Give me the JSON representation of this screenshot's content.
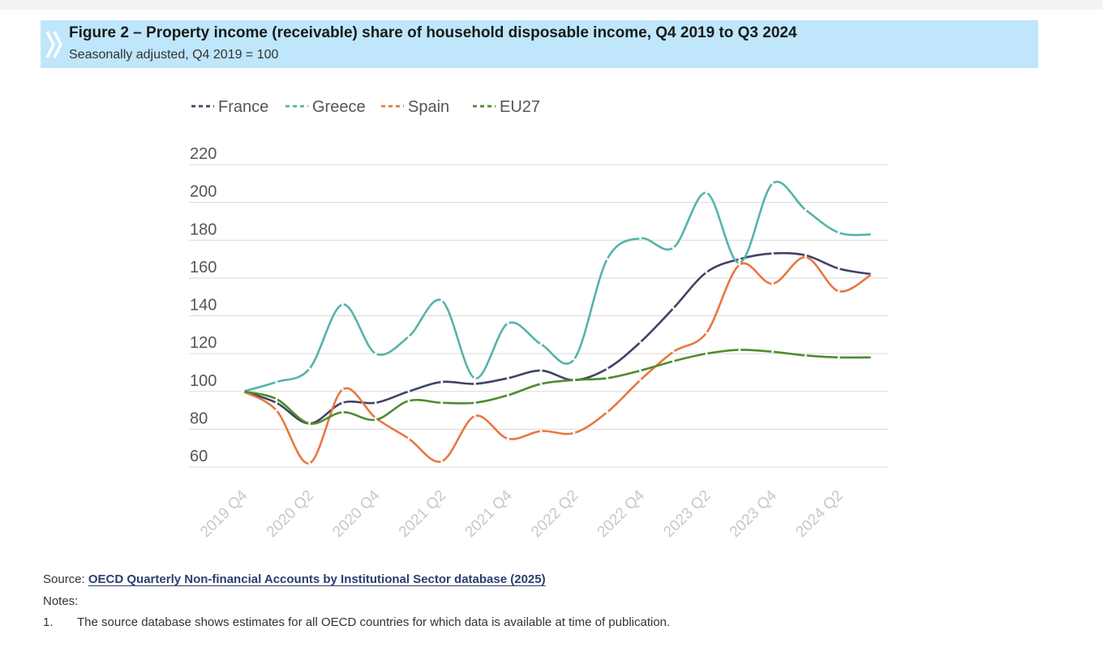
{
  "header": {
    "title": "Figure 2 – Property income (receivable) share of household disposable income, Q4 2019 to Q3 2024",
    "subtitle": "Seasonally adjusted, Q4 2019 = 100"
  },
  "chart_data": {
    "type": "line",
    "title": "",
    "xlabel": "",
    "ylabel": "",
    "ylim": [
      60,
      220
    ],
    "yticks": [
      60,
      80,
      100,
      120,
      140,
      160,
      180,
      200,
      220
    ],
    "grid": true,
    "legend_position": "top-left",
    "x": [
      "2019 Q4",
      "2020 Q1",
      "2020 Q2",
      "2020 Q3",
      "2020 Q4",
      "2021 Q1",
      "2021 Q2",
      "2021 Q3",
      "2021 Q4",
      "2022 Q1",
      "2022 Q2",
      "2022 Q3",
      "2022 Q4",
      "2023 Q1",
      "2023 Q2",
      "2023 Q3",
      "2023 Q4",
      "2024 Q1",
      "2024 Q2",
      "2024 Q3"
    ],
    "x_tick_labels": [
      "2019 Q4",
      "2020 Q2",
      "2020 Q4",
      "2021 Q2",
      "2021 Q4",
      "2022 Q2",
      "2022 Q4",
      "2023 Q2",
      "2023 Q4",
      "2024 Q2"
    ],
    "series": [
      {
        "name": "France",
        "color": "#3d4465",
        "values": [
          100,
          94,
          83,
          94,
          94,
          100,
          105,
          104,
          107,
          111,
          106,
          112,
          126,
          144,
          163,
          170,
          173,
          172,
          165,
          162
        ]
      },
      {
        "name": "Greece",
        "color": "#55b3ac",
        "values": [
          100,
          105,
          112,
          146,
          120,
          129,
          148,
          107,
          136,
          125,
          117,
          170,
          181,
          176,
          205,
          168,
          210,
          196,
          184,
          183
        ]
      },
      {
        "name": "Spain",
        "color": "#e67840",
        "values": [
          100,
          90,
          62,
          101,
          86,
          75,
          63,
          87,
          75,
          79,
          78,
          89,
          106,
          121,
          131,
          167,
          157,
          171,
          153,
          162
        ]
      },
      {
        "name": "EU27",
        "color": "#4e8c2c",
        "values": [
          100,
          96,
          83,
          89,
          85,
          95,
          94,
          94,
          98,
          104,
          106,
          107,
          111,
          116,
          120,
          122,
          121,
          119,
          118,
          118
        ]
      }
    ]
  },
  "footer": {
    "source_label": "Source:",
    "source_link": "OECD Quarterly Non-financial Accounts by Institutional Sector database (2025)",
    "notes_label": "Notes:",
    "note_number": "1.",
    "note_text": "The source database shows estimates for all OECD countries for which data is available at time of publication."
  }
}
